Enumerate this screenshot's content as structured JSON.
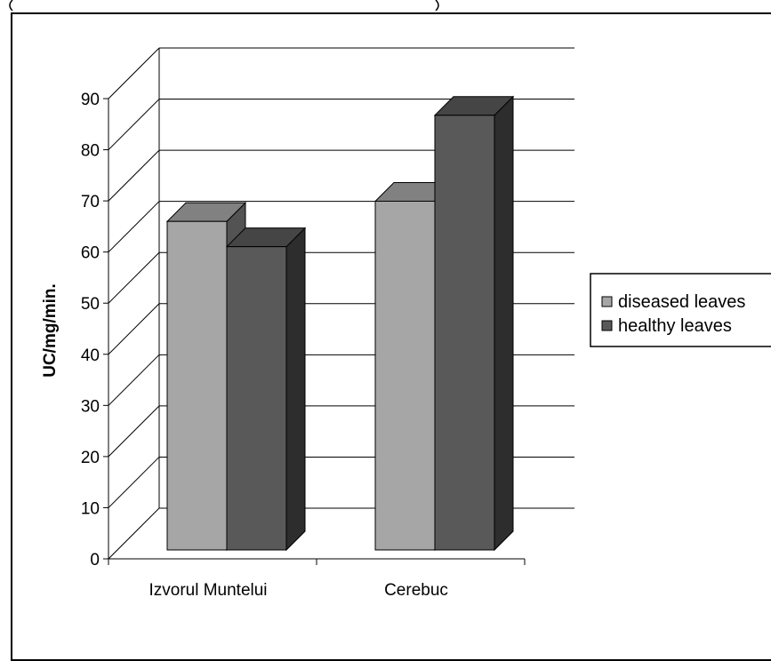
{
  "chart_data": {
    "type": "bar",
    "title": "",
    "xlabel": "",
    "ylabel": "UC/mg/min.",
    "ylim": [
      0,
      90
    ],
    "yticks": [
      "0",
      "10",
      "20",
      "30",
      "40",
      "50",
      "60",
      "70",
      "80",
      "90"
    ],
    "categories": [
      "Izvorul Muntelui",
      "Cerebuc"
    ],
    "series": [
      {
        "name": "diseased leaves",
        "values": [
          65,
          69
        ],
        "color": "#a6a6a6"
      },
      {
        "name": "healthy leaves",
        "values": [
          60,
          86
        ],
        "color": "#595959"
      }
    ],
    "grid": true,
    "legend": "right",
    "style": "3d-clustered-column"
  }
}
